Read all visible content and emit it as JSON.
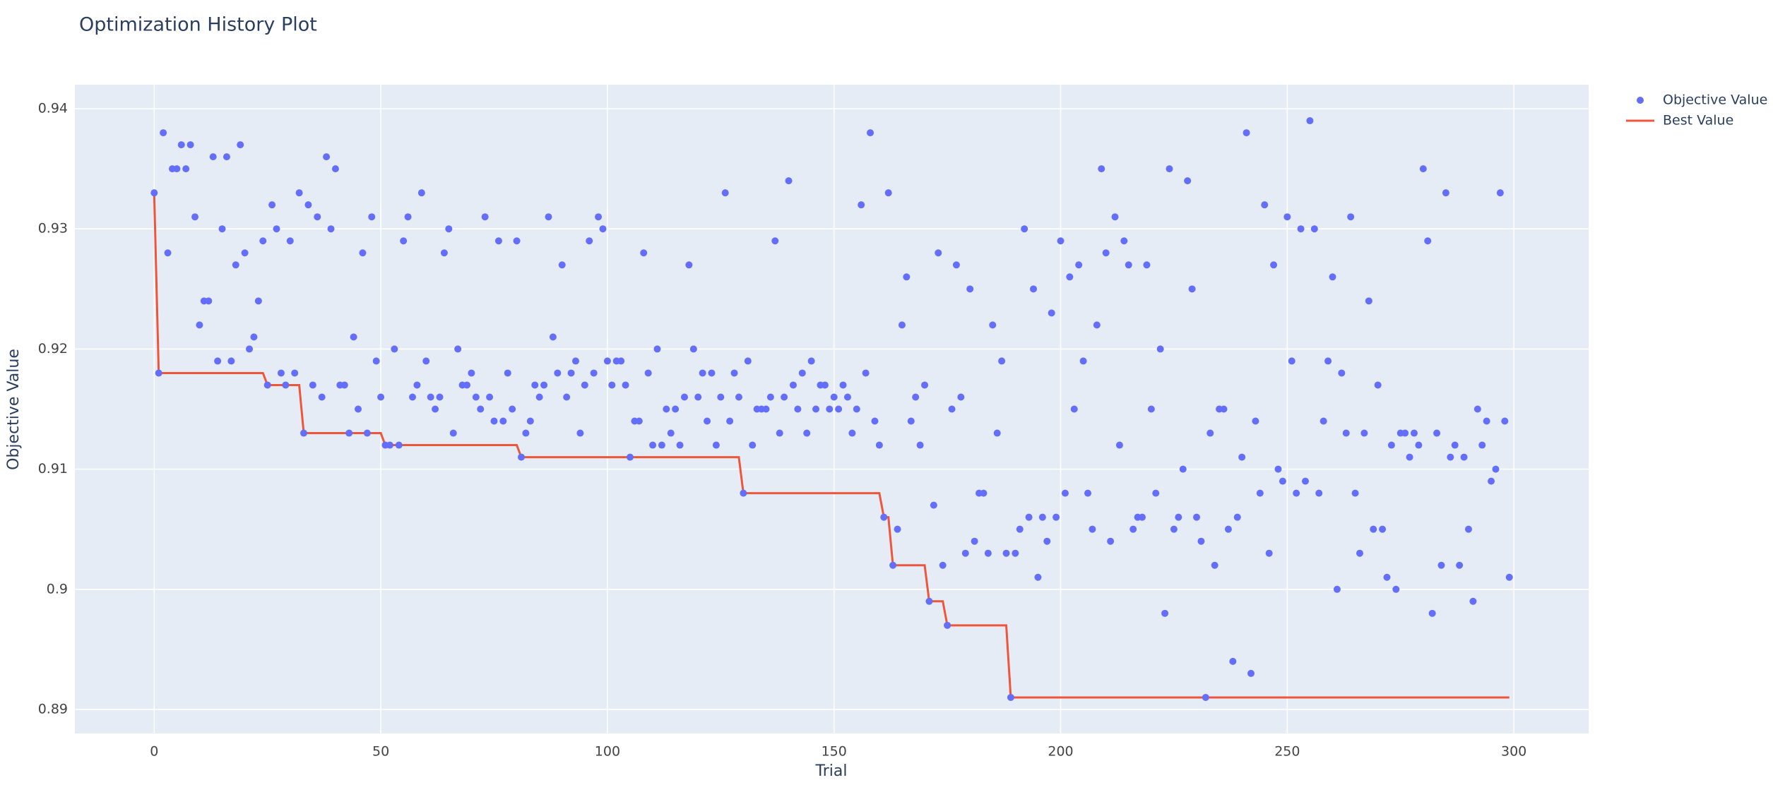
{
  "chart_data": {
    "type": "scatter",
    "title": "Optimization History Plot",
    "x_label": "Trial",
    "y_label": "Objective Value",
    "x": [
      0,
      1,
      2,
      3,
      4,
      5,
      6,
      7,
      8,
      9,
      10,
      11,
      12,
      13,
      14,
      15,
      16,
      17,
      18,
      19,
      20,
      21,
      22,
      23,
      24,
      25,
      26,
      27,
      28,
      29,
      30,
      31,
      32,
      33,
      34,
      35,
      36,
      37,
      38,
      39,
      40,
      41,
      42,
      43,
      44,
      45,
      46,
      47,
      48,
      49,
      50,
      51,
      52,
      53,
      54,
      55,
      56,
      57,
      58,
      59,
      60,
      61,
      62,
      63,
      64,
      65,
      66,
      67,
      68,
      69,
      70,
      71,
      72,
      73,
      74,
      75,
      76,
      77,
      78,
      79,
      80,
      81,
      82,
      83,
      84,
      85,
      86,
      87,
      88,
      89,
      90,
      91,
      92,
      93,
      94,
      95,
      96,
      97,
      98,
      99,
      100,
      101,
      102,
      103,
      104,
      105,
      106,
      107,
      108,
      109,
      110,
      111,
      112,
      113,
      114,
      115,
      116,
      117,
      118,
      119,
      120,
      121,
      122,
      123,
      124,
      125,
      126,
      127,
      128,
      129,
      130,
      131,
      132,
      133,
      134,
      135,
      136,
      137,
      138,
      139,
      140,
      141,
      142,
      143,
      144,
      145,
      146,
      147,
      148,
      149,
      150,
      151,
      152,
      153,
      154,
      155,
      156,
      157,
      158,
      159,
      160,
      161,
      162,
      163,
      164,
      165,
      166,
      167,
      168,
      169,
      170,
      171,
      172,
      173,
      174,
      175,
      176,
      177,
      178,
      179,
      180,
      181,
      182,
      183,
      184,
      185,
      186,
      187,
      188,
      189,
      190,
      191,
      192,
      193,
      194,
      195,
      196,
      197,
      198,
      199,
      200,
      201,
      202,
      203,
      204,
      205,
      206,
      207,
      208,
      209,
      210,
      211,
      212,
      213,
      214,
      215,
      216,
      217,
      218,
      219,
      220,
      221,
      222,
      223,
      224,
      225,
      226,
      227,
      228,
      229,
      230,
      231,
      232,
      233,
      234,
      235,
      236,
      237,
      238,
      239,
      240,
      241,
      242,
      243,
      244,
      245,
      246,
      247,
      248,
      249,
      250,
      251,
      252,
      253,
      254,
      255,
      256,
      257,
      258,
      259,
      260,
      261,
      262,
      263,
      264,
      265,
      266,
      267,
      268,
      269,
      270,
      271,
      272,
      273,
      274,
      275,
      276,
      277,
      278,
      279,
      280,
      281,
      282,
      283,
      284,
      285,
      286,
      287,
      288,
      289,
      290,
      291,
      292,
      293,
      294,
      295,
      296,
      297,
      298,
      299
    ],
    "series": [
      {
        "name": "Objective Value",
        "mode": "markers",
        "color": "#636efa",
        "values": [
          0.933,
          0.918,
          0.938,
          0.928,
          0.935,
          0.935,
          0.937,
          0.935,
          0.937,
          0.931,
          0.922,
          0.924,
          0.924,
          0.936,
          0.919,
          0.93,
          0.936,
          0.919,
          0.927,
          0.937,
          0.928,
          0.92,
          0.921,
          0.924,
          0.929,
          0.917,
          0.932,
          0.93,
          0.918,
          0.917,
          0.929,
          0.918,
          0.933,
          0.913,
          0.932,
          0.917,
          0.931,
          0.916,
          0.936,
          0.93,
          0.935,
          0.917,
          0.917,
          0.913,
          0.921,
          0.915,
          0.928,
          0.913,
          0.931,
          0.919,
          0.916,
          0.912,
          0.912,
          0.92,
          0.912,
          0.929,
          0.931,
          0.916,
          0.917,
          0.933,
          0.919,
          0.916,
          0.915,
          0.916,
          0.928,
          0.93,
          0.913,
          0.92,
          0.917,
          0.917,
          0.918,
          0.916,
          0.915,
          0.931,
          0.916,
          0.914,
          0.929,
          0.914,
          0.918,
          0.915,
          0.929,
          0.911,
          0.913,
          0.914,
          0.917,
          0.916,
          0.917,
          0.931,
          0.921,
          0.918,
          0.927,
          0.916,
          0.918,
          0.919,
          0.913,
          0.917,
          0.929,
          0.918,
          0.931,
          0.93,
          0.919,
          0.917,
          0.919,
          0.919,
          0.917,
          0.911,
          0.914,
          0.914,
          0.928,
          0.918,
          0.912,
          0.92,
          0.912,
          0.915,
          0.913,
          0.915,
          0.912,
          0.916,
          0.927,
          0.92,
          0.916,
          0.918,
          0.914,
          0.918,
          0.912,
          0.916,
          0.933,
          0.914,
          0.918,
          0.916,
          0.908,
          0.919,
          0.912,
          0.915,
          0.915,
          0.915,
          0.916,
          0.929,
          0.913,
          0.916,
          0.934,
          0.917,
          0.915,
          0.918,
          0.913,
          0.919,
          0.915,
          0.917,
          0.917,
          0.915,
          0.916,
          0.915,
          0.917,
          0.916,
          0.913,
          0.915,
          0.932,
          0.918,
          0.938,
          0.914,
          0.912,
          0.906,
          0.933,
          0.902,
          0.905,
          0.922,
          0.926,
          0.914,
          0.916,
          0.912,
          0.917,
          0.899,
          0.907,
          0.928,
          0.902,
          0.897,
          0.915,
          0.927,
          0.916,
          0.903,
          0.925,
          0.904,
          0.908,
          0.908,
          0.903,
          0.922,
          0.913,
          0.919,
          0.903,
          0.891,
          0.903,
          0.905,
          0.93,
          0.906,
          0.925,
          0.901,
          0.906,
          0.904,
          0.923,
          0.906,
          0.929,
          0.908,
          0.926,
          0.915,
          0.927,
          0.919,
          0.908,
          0.905,
          0.922,
          0.935,
          0.928,
          0.904,
          0.931,
          0.912,
          0.929,
          0.927,
          0.905,
          0.906,
          0.906,
          0.927,
          0.915,
          0.908,
          0.92,
          0.898,
          0.935,
          0.905,
          0.906,
          0.91,
          0.934,
          0.925,
          0.906,
          0.904,
          0.891,
          0.913,
          0.902,
          0.915,
          0.915,
          0.905,
          0.894,
          0.906,
          0.911,
          0.938,
          0.893,
          0.914,
          0.908,
          0.932,
          0.903,
          0.927,
          0.91,
          0.909,
          0.931,
          0.919,
          0.908,
          0.93,
          0.909,
          0.939,
          0.93,
          0.908,
          0.914,
          0.919,
          0.926,
          0.9,
          0.918,
          0.913,
          0.931,
          0.908,
          0.903,
          0.913,
          0.924,
          0.905,
          0.917,
          0.905,
          0.901,
          0.912,
          0.9,
          0.913,
          0.913,
          0.911,
          0.913,
          0.912,
          0.935,
          0.929,
          0.898,
          0.913,
          0.902,
          0.933,
          0.911,
          0.912,
          0.902,
          0.911,
          0.905,
          0.899,
          0.915,
          0.912,
          0.914,
          0.909,
          0.91,
          0.933,
          0.914,
          0.901
        ]
      },
      {
        "name": "Best Value",
        "mode": "lines",
        "color": "#ef553b",
        "values": [
          0.933,
          0.918,
          0.918,
          0.918,
          0.918,
          0.918,
          0.918,
          0.918,
          0.918,
          0.918,
          0.918,
          0.918,
          0.918,
          0.918,
          0.918,
          0.918,
          0.918,
          0.918,
          0.918,
          0.918,
          0.918,
          0.918,
          0.918,
          0.918,
          0.918,
          0.917,
          0.917,
          0.917,
          0.917,
          0.917,
          0.917,
          0.917,
          0.917,
          0.913,
          0.913,
          0.913,
          0.913,
          0.913,
          0.913,
          0.913,
          0.913,
          0.913,
          0.913,
          0.913,
          0.913,
          0.913,
          0.913,
          0.913,
          0.913,
          0.913,
          0.913,
          0.912,
          0.912,
          0.912,
          0.912,
          0.912,
          0.912,
          0.912,
          0.912,
          0.912,
          0.912,
          0.912,
          0.912,
          0.912,
          0.912,
          0.912,
          0.912,
          0.912,
          0.912,
          0.912,
          0.912,
          0.912,
          0.912,
          0.912,
          0.912,
          0.912,
          0.912,
          0.912,
          0.912,
          0.912,
          0.912,
          0.911,
          0.911,
          0.911,
          0.911,
          0.911,
          0.911,
          0.911,
          0.911,
          0.911,
          0.911,
          0.911,
          0.911,
          0.911,
          0.911,
          0.911,
          0.911,
          0.911,
          0.911,
          0.911,
          0.911,
          0.911,
          0.911,
          0.911,
          0.911,
          0.911,
          0.911,
          0.911,
          0.911,
          0.911,
          0.911,
          0.911,
          0.911,
          0.911,
          0.911,
          0.911,
          0.911,
          0.911,
          0.911,
          0.911,
          0.911,
          0.911,
          0.911,
          0.911,
          0.911,
          0.911,
          0.911,
          0.911,
          0.911,
          0.911,
          0.908,
          0.908,
          0.908,
          0.908,
          0.908,
          0.908,
          0.908,
          0.908,
          0.908,
          0.908,
          0.908,
          0.908,
          0.908,
          0.908,
          0.908,
          0.908,
          0.908,
          0.908,
          0.908,
          0.908,
          0.908,
          0.908,
          0.908,
          0.908,
          0.908,
          0.908,
          0.908,
          0.908,
          0.908,
          0.908,
          0.908,
          0.906,
          0.906,
          0.902,
          0.902,
          0.902,
          0.902,
          0.902,
          0.902,
          0.902,
          0.902,
          0.899,
          0.899,
          0.899,
          0.899,
          0.897,
          0.897,
          0.897,
          0.897,
          0.897,
          0.897,
          0.897,
          0.897,
          0.897,
          0.897,
          0.897,
          0.897,
          0.897,
          0.897,
          0.891,
          0.891,
          0.891,
          0.891,
          0.891,
          0.891,
          0.891,
          0.891,
          0.891,
          0.891,
          0.891,
          0.891,
          0.891,
          0.891,
          0.891,
          0.891,
          0.891,
          0.891,
          0.891,
          0.891,
          0.891,
          0.891,
          0.891,
          0.891,
          0.891,
          0.891,
          0.891,
          0.891,
          0.891,
          0.891,
          0.891,
          0.891,
          0.891,
          0.891,
          0.891,
          0.891,
          0.891,
          0.891,
          0.891,
          0.891,
          0.891,
          0.891,
          0.891,
          0.891,
          0.891,
          0.891,
          0.891,
          0.891,
          0.891,
          0.891,
          0.891,
          0.891,
          0.891,
          0.891,
          0.891,
          0.891,
          0.891,
          0.891,
          0.891,
          0.891,
          0.891,
          0.891,
          0.891,
          0.891,
          0.891,
          0.891,
          0.891,
          0.891,
          0.891,
          0.891,
          0.891,
          0.891,
          0.891,
          0.891,
          0.891,
          0.891,
          0.891,
          0.891,
          0.891,
          0.891,
          0.891,
          0.891,
          0.891,
          0.891,
          0.891,
          0.891,
          0.891,
          0.891,
          0.891,
          0.891,
          0.891,
          0.891,
          0.891,
          0.891,
          0.891,
          0.891,
          0.891,
          0.891,
          0.891,
          0.891,
          0.891,
          0.891,
          0.891,
          0.891,
          0.891,
          0.891,
          0.891,
          0.891,
          0.891,
          0.891,
          0.891
        ]
      }
    ],
    "xlim": [
      -17.5,
      316.5
    ],
    "xticks": [
      0,
      50,
      100,
      150,
      200,
      250,
      300
    ],
    "ylim": [
      0.888,
      0.942
    ],
    "yticks": [
      0.89,
      0.9,
      0.91,
      0.92,
      0.93,
      0.94
    ],
    "grid": true,
    "plot_background": "#e5ecf6",
    "legend": "outside-right"
  }
}
